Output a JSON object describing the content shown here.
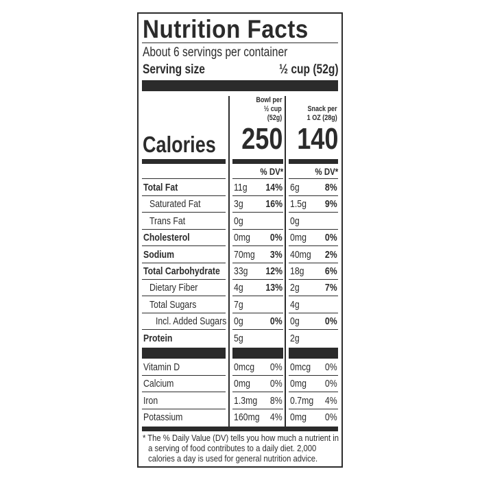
{
  "title": "Nutrition Facts",
  "servings_per_container": "About 6 servings per container",
  "serving_size_label": "Serving size",
  "serving_size_value": "½ cup (52g)",
  "columns": [
    {
      "heading": [
        "Bowl per",
        "½ cup",
        "(52g)"
      ],
      "calories": "250",
      "dv_label": "% DV*"
    },
    {
      "heading": [
        "Snack per",
        "1 OZ (28g)"
      ],
      "calories": "140",
      "dv_label": "% DV*"
    }
  ],
  "calories_label": "Calories",
  "nutrients": [
    {
      "name": "Total Fat",
      "bold": true,
      "indent": 0,
      "v1": "11g",
      "p1": "14%",
      "v2": "6g",
      "p2": "8%"
    },
    {
      "name": "Saturated Fat",
      "bold": false,
      "indent": 1,
      "v1": "3g",
      "p1": "16%",
      "v2": "1.5g",
      "p2": "9%"
    },
    {
      "name": "Trans Fat",
      "bold": false,
      "indent": 1,
      "v1": "0g",
      "p1": "",
      "v2": "0g",
      "p2": ""
    },
    {
      "name": "Cholesterol",
      "bold": true,
      "indent": 0,
      "v1": "0mg",
      "p1": "0%",
      "v2": "0mg",
      "p2": "0%"
    },
    {
      "name": "Sodium",
      "bold": true,
      "indent": 0,
      "v1": "70mg",
      "p1": "3%",
      "v2": "40mg",
      "p2": "2%"
    },
    {
      "name": "Total Carbohydrate",
      "bold": true,
      "indent": 0,
      "v1": "33g",
      "p1": "12%",
      "v2": "18g",
      "p2": "6%"
    },
    {
      "name": "Dietary Fiber",
      "bold": false,
      "indent": 1,
      "v1": "4g",
      "p1": "13%",
      "v2": "2g",
      "p2": "7%"
    },
    {
      "name": "Total Sugars",
      "bold": false,
      "indent": 1,
      "v1": "7g",
      "p1": "",
      "v2": "4g",
      "p2": ""
    },
    {
      "name": "Incl. Added Sugars",
      "bold": false,
      "indent": 2,
      "v1": "0g",
      "p1": "0%",
      "v2": "0g",
      "p2": "0%"
    },
    {
      "name": "Protein",
      "bold": true,
      "indent": 0,
      "v1": "5g",
      "p1": "",
      "v2": "2g",
      "p2": ""
    }
  ],
  "vitamins": [
    {
      "name": "Vitamin D",
      "v1": "0mcg",
      "p1": "0%",
      "v2": "0mcg",
      "p2": "0%"
    },
    {
      "name": "Calcium",
      "v1": "0mg",
      "p1": "0%",
      "v2": "0mg",
      "p2": "0%"
    },
    {
      "name": "Iron",
      "v1": "1.3mg",
      "p1": "8%",
      "v2": "0.7mg",
      "p2": "4%"
    },
    {
      "name": "Potassium",
      "v1": "160mg",
      "p1": "4%",
      "v2": "0mg",
      "p2": "0%"
    }
  ],
  "footnote": "* The % Daily Value (DV) tells you how much a nutrient in a serving of food contributes to a daily diet. 2,000 calories a day is used for general nutrition advice.",
  "colors": {
    "ink": "#2b2b2b",
    "background": "#ffffff"
  }
}
